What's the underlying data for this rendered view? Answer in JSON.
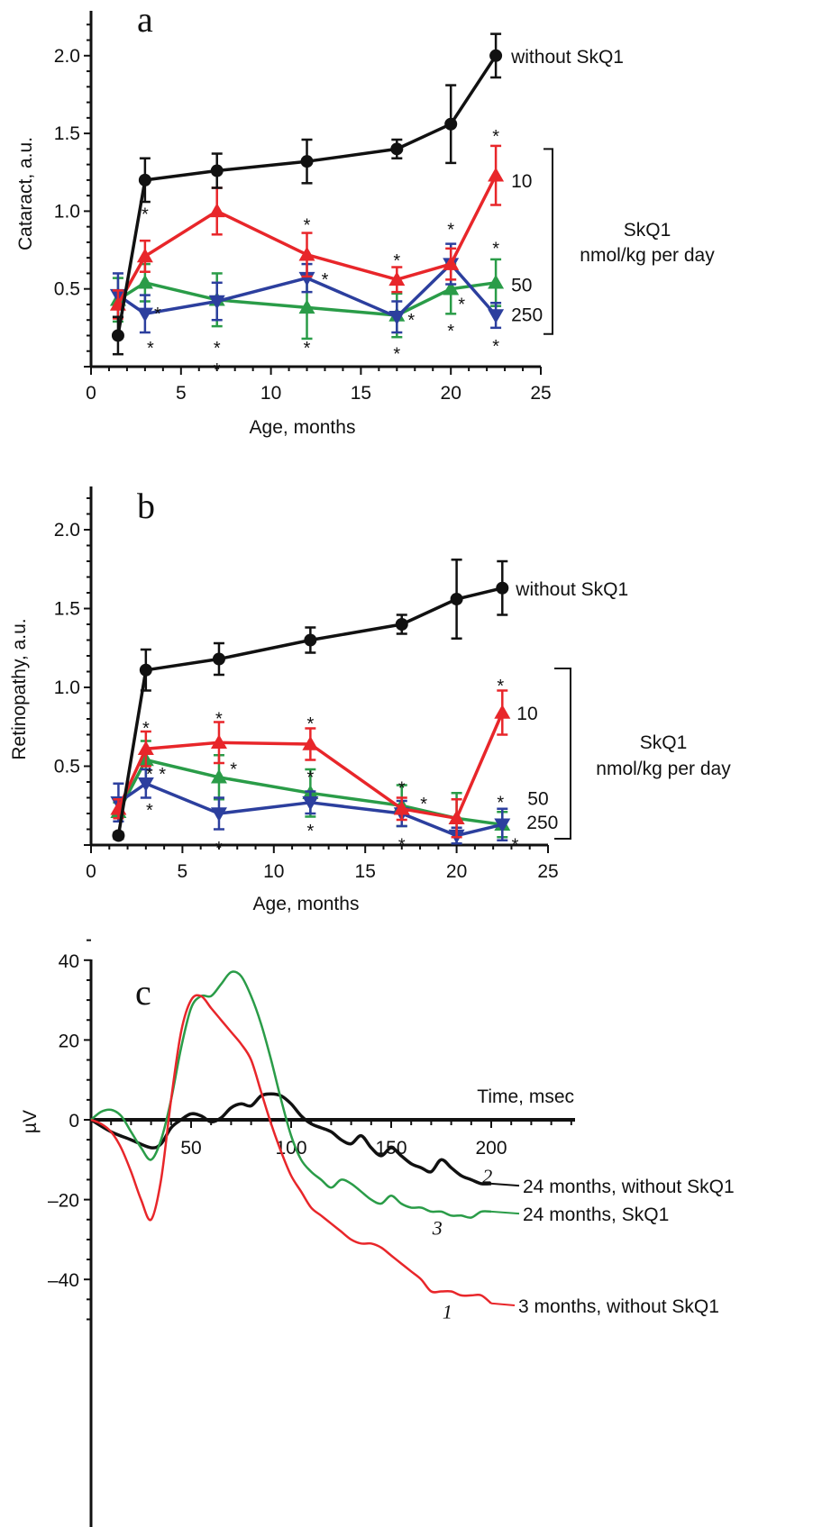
{
  "colors": {
    "black": "#111111",
    "red": "#e8262a",
    "green": "#2a9c48",
    "blue": "#2c3f9e"
  },
  "chart_data": [
    {
      "id": "a",
      "type": "line",
      "panel_label": "a",
      "xlabel": "Age, months",
      "ylabel": "Cataract, a.u.",
      "xlim": [
        0,
        25
      ],
      "ylim": [
        0,
        2.3
      ],
      "x_ticks": [
        "0",
        "5",
        "10",
        "15",
        "20",
        "25"
      ],
      "y_ticks": [
        "0.5",
        "1.0",
        "1.5",
        "2.0"
      ],
      "series": [
        {
          "name": "without SkQ1",
          "color": "black",
          "marker": "circle",
          "x": [
            1.5,
            3,
            7,
            12,
            17,
            20,
            22.5
          ],
          "y": [
            0.2,
            1.2,
            1.26,
            1.32,
            1.4,
            1.56,
            2.0
          ],
          "err": [
            0.12,
            0.14,
            0.11,
            0.14,
            0.06,
            0.25,
            0.14
          ]
        },
        {
          "name": "10",
          "color": "red",
          "marker": "triangle-up",
          "x": [
            1.5,
            3,
            7,
            12,
            17,
            20,
            22.5
          ],
          "y": [
            0.4,
            0.71,
            1.0,
            0.72,
            0.56,
            0.66,
            1.23
          ],
          "err": [
            0.09,
            0.1,
            0.15,
            0.14,
            0.08,
            0.1,
            0.19
          ]
        },
        {
          "name": "50",
          "color": "green",
          "marker": "triangle-up",
          "x": [
            1.5,
            3,
            7,
            12,
            17,
            20,
            22.5
          ],
          "y": [
            0.43,
            0.54,
            0.43,
            0.38,
            0.33,
            0.5,
            0.54
          ],
          "err": [
            0.14,
            0.12,
            0.17,
            0.2,
            0.14,
            0.16,
            0.15
          ]
        },
        {
          "name": "250",
          "color": "blue",
          "marker": "triangle-down",
          "x": [
            1.5,
            3,
            7,
            12,
            17,
            20,
            22.5
          ],
          "y": [
            0.46,
            0.34,
            0.42,
            0.57,
            0.32,
            0.66,
            0.33
          ],
          "err": [
            0.14,
            0.12,
            0.12,
            0.09,
            0.1,
            0.13,
            0.08
          ]
        }
      ],
      "bracket_label": [
        "SkQ1",
        "nmol/kg per day"
      ]
    },
    {
      "id": "b",
      "type": "line",
      "panel_label": "b",
      "xlabel": "Age, months",
      "ylabel": "Retinopathy, a.u.",
      "xlim": [
        0,
        25
      ],
      "ylim": [
        0,
        2.3
      ],
      "x_ticks": [
        "0",
        "5",
        "10",
        "15",
        "20",
        "25"
      ],
      "y_ticks": [
        "0.5",
        "1.0",
        "1.5",
        "2.0"
      ],
      "series": [
        {
          "name": "without SkQ1",
          "color": "black",
          "marker": "circle",
          "x": [
            1.5,
            3,
            7,
            12,
            17,
            20,
            22.5
          ],
          "y": [
            0.06,
            1.11,
            1.18,
            1.3,
            1.4,
            1.56,
            1.63
          ],
          "err": [
            0.02,
            0.13,
            0.1,
            0.08,
            0.06,
            0.25,
            0.17
          ]
        },
        {
          "name": "10",
          "color": "red",
          "marker": "triangle-up",
          "x": [
            1.5,
            3,
            7,
            12,
            17,
            20,
            22.5
          ],
          "y": [
            0.23,
            0.61,
            0.65,
            0.64,
            0.23,
            0.17,
            0.84
          ],
          "err": [
            0.06,
            0.11,
            0.13,
            0.1,
            0.07,
            0.12,
            0.14
          ]
        },
        {
          "name": "50",
          "color": "green",
          "marker": "triangle-up",
          "x": [
            1.5,
            3,
            7,
            12,
            17,
            20,
            22.5
          ],
          "y": [
            0.21,
            0.54,
            0.43,
            0.33,
            0.25,
            0.17,
            0.13
          ],
          "err": [
            0.06,
            0.12,
            0.14,
            0.15,
            0.13,
            0.16,
            0.08
          ]
        },
        {
          "name": "250",
          "color": "blue",
          "marker": "triangle-down",
          "x": [
            1.5,
            3,
            7,
            12,
            17,
            20,
            22.5
          ],
          "y": [
            0.27,
            0.39,
            0.2,
            0.27,
            0.2,
            0.06,
            0.13
          ],
          "err": [
            0.12,
            0.09,
            0.1,
            0.07,
            0.08,
            0.05,
            0.1
          ]
        }
      ],
      "bracket_label": [
        "SkQ1",
        "nmol/kg per day"
      ]
    },
    {
      "id": "c",
      "type": "line",
      "panel_label": "c",
      "xlabel": "Time, msec",
      "ylabel": "µV",
      "xlim": [
        0,
        240
      ],
      "ylim": [
        -50,
        45
      ],
      "x_ticks": [
        "50",
        "100",
        "150",
        "200"
      ],
      "y_ticks": [
        "40",
        "20",
        "0",
        "–20",
        "–40"
      ],
      "series": [
        {
          "name": "24 months, without SkQ1",
          "number": "2",
          "color": "black",
          "x": [
            0,
            10,
            20,
            30,
            35,
            40,
            45,
            50,
            55,
            60,
            65,
            70,
            75,
            80,
            85,
            90,
            95,
            100,
            105,
            110,
            115,
            120,
            125,
            130,
            135,
            140,
            145,
            150,
            155,
            160,
            165,
            170,
            175,
            180,
            185,
            190,
            195,
            200
          ],
          "y": [
            0,
            -3,
            -5,
            -7,
            -6,
            -2,
            0,
            1.5,
            1,
            -0.5,
            0.5,
            3,
            4,
            3.5,
            6,
            6.5,
            6,
            4,
            1,
            -1,
            -2,
            -3,
            -5,
            -6,
            -4,
            -7,
            -9,
            -7,
            -9,
            -11,
            -12,
            -13,
            -10,
            -12,
            -14,
            -15,
            -16,
            -16
          ]
        },
        {
          "name": "24 months, SkQ1",
          "number": "3",
          "color": "green",
          "x": [
            0,
            5,
            10,
            15,
            20,
            25,
            30,
            35,
            40,
            45,
            50,
            55,
            60,
            65,
            70,
            75,
            80,
            85,
            90,
            95,
            100,
            105,
            110,
            115,
            120,
            125,
            130,
            135,
            140,
            145,
            150,
            155,
            160,
            165,
            170,
            175,
            180,
            185,
            190,
            195,
            200
          ],
          "y": [
            0,
            2,
            2.5,
            1,
            -3,
            -7,
            -10,
            -5,
            5,
            18,
            28,
            31,
            31,
            34,
            37,
            36,
            31,
            24,
            15,
            5,
            -4,
            -10,
            -13,
            -15,
            -17,
            -15,
            -16,
            -18,
            -20,
            -21,
            -19,
            -21,
            -22,
            -22,
            -23,
            -23,
            -24,
            -24,
            -24.5,
            -23,
            -23
          ]
        },
        {
          "name": "3 months, without SkQ1",
          "number": "1",
          "color": "red",
          "x": [
            0,
            5,
            10,
            15,
            20,
            25,
            30,
            35,
            40,
            45,
            50,
            55,
            60,
            65,
            70,
            75,
            80,
            85,
            90,
            95,
            100,
            105,
            110,
            115,
            120,
            125,
            130,
            135,
            140,
            145,
            150,
            155,
            160,
            165,
            170,
            175,
            180,
            185,
            190,
            195,
            200
          ],
          "y": [
            0,
            -1,
            -3,
            -7,
            -13,
            -20,
            -25,
            -15,
            5,
            22,
            30,
            31,
            28,
            25,
            22,
            19,
            15,
            7,
            -1,
            -8,
            -14,
            -18,
            -22,
            -24,
            -26,
            -28,
            -30,
            -31,
            -31,
            -32,
            -34,
            -36,
            -38,
            -40,
            -43,
            -43,
            -43,
            -44,
            -44,
            -44,
            -46
          ]
        }
      ]
    }
  ],
  "significance_mark": "*"
}
